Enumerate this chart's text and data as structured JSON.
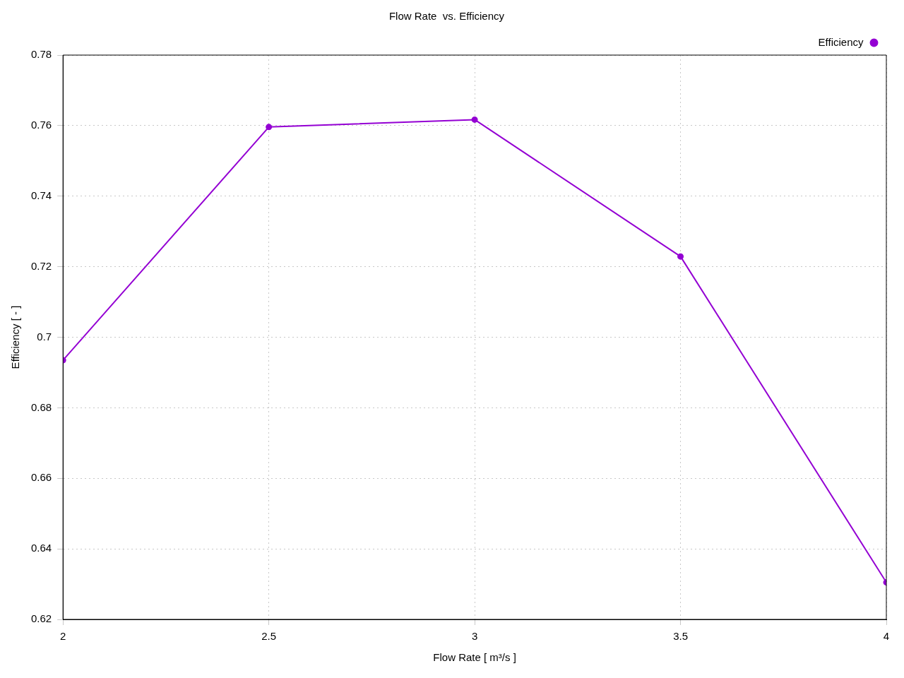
{
  "chart_data": {
    "type": "line",
    "title": "Flow Rate  vs. Efficiency",
    "xlabel": "Flow Rate [ m³/s ]",
    "ylabel": "Efficiency [ - ]",
    "x": [
      2,
      2.5,
      3,
      3.5,
      4
    ],
    "series": [
      {
        "name": "Efficiency",
        "color": "#9400d3",
        "values": [
          0.6935,
          0.7596,
          0.7617,
          0.7229,
          0.6305
        ]
      }
    ],
    "xlim": [
      2,
      4
    ],
    "xticks": [
      2,
      2.5,
      3,
      3.5,
      4
    ],
    "ylim": [
      0.62,
      0.78
    ],
    "yticks": [
      0.62,
      0.64,
      0.66,
      0.68,
      0.7,
      0.72,
      0.74,
      0.76,
      0.78
    ],
    "grid": true,
    "legend": "top right",
    "marker": "circle",
    "line_style": "solid"
  }
}
